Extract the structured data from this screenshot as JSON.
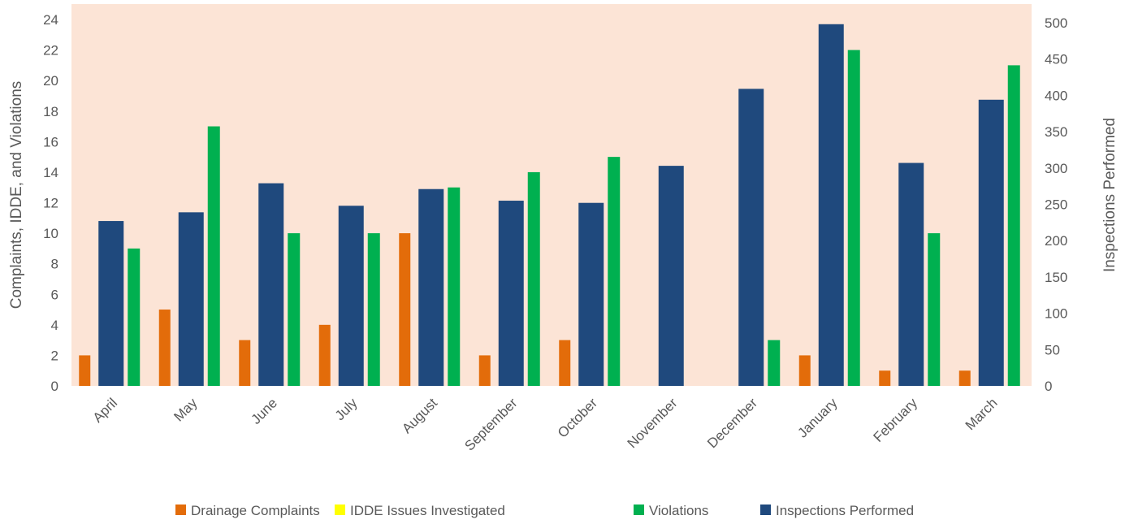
{
  "chart_data": {
    "type": "bar",
    "categories": [
      "April",
      "May",
      "June",
      "July",
      "August",
      "September",
      "October",
      "November",
      "December",
      "January",
      "February",
      "March"
    ],
    "series": [
      {
        "name": "Drainage Complaints",
        "axis": "left",
        "color": "#E36C0A",
        "values": [
          2,
          5,
          3,
          4,
          10,
          2,
          3,
          0,
          0,
          2,
          1,
          1
        ]
      },
      {
        "name": "IDDE Issues Investigated",
        "axis": "left",
        "color": "#FFFF00",
        "values": [
          0,
          0,
          0,
          0,
          0,
          0,
          0,
          0,
          0,
          0,
          0,
          0
        ]
      },
      {
        "name": "Violations",
        "axis": "left",
        "color": "#00B050",
        "values": [
          9,
          17,
          10,
          10,
          13,
          14,
          15,
          0,
          3,
          22,
          10,
          21
        ]
      },
      {
        "name": "Inspections Performed",
        "axis": "right",
        "color": "#1F497D",
        "values": [
          227,
          239,
          279,
          248,
          271,
          255,
          252,
          303,
          409,
          498,
          307,
          394
        ]
      }
    ],
    "ylabel": "Complaints, IDDE, and Violations",
    "y2label": "Inspections Performed",
    "ylim": [
      0,
      24
    ],
    "y2lim": [
      0,
      500
    ],
    "yticks": [
      "0",
      "2",
      "4",
      "6",
      "8",
      "10",
      "12",
      "14",
      "16",
      "18",
      "20",
      "22",
      "24"
    ],
    "y2ticks": [
      "0",
      "50",
      "100",
      "150",
      "200",
      "250",
      "300",
      "350",
      "400",
      "450",
      "500"
    ],
    "plot_background": "#FCE4D6",
    "grid": false,
    "legend_position": "bottom"
  }
}
